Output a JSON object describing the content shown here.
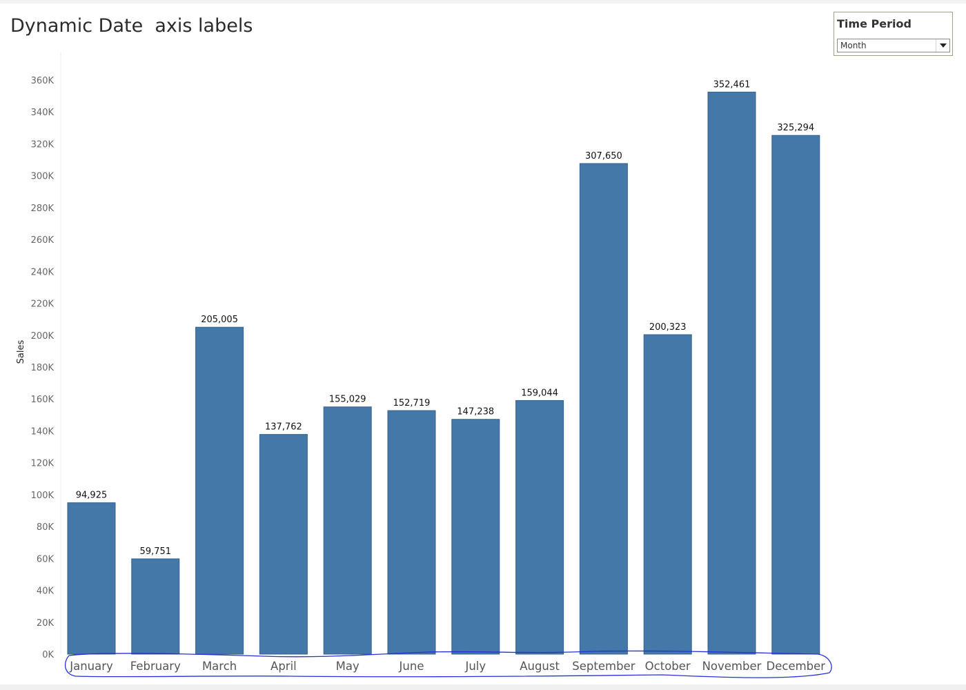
{
  "page": {
    "title": "Dynamic Date  axis labels"
  },
  "filter": {
    "title": "Time Period",
    "value": "Month",
    "arrow_icon": "dropdown-arrow-icon"
  },
  "colors": {
    "bar": "#4378a8",
    "annotation": "#2431d9"
  },
  "chart_data": {
    "type": "bar",
    "ylabel": "Sales",
    "xlabel": "",
    "ylim": [
      0,
      360000
    ],
    "yticks": [
      0,
      20000,
      40000,
      60000,
      80000,
      100000,
      120000,
      140000,
      160000,
      180000,
      200000,
      220000,
      240000,
      260000,
      280000,
      300000,
      320000,
      340000,
      360000
    ],
    "ytick_labels": [
      "0K",
      "20K",
      "40K",
      "60K",
      "80K",
      "100K",
      "120K",
      "140K",
      "160K",
      "180K",
      "200K",
      "220K",
      "240K",
      "260K",
      "280K",
      "300K",
      "320K",
      "340K",
      "360K"
    ],
    "categories": [
      "January",
      "February",
      "March",
      "April",
      "May",
      "June",
      "July",
      "August",
      "September",
      "October",
      "November",
      "December"
    ],
    "values": [
      94925,
      59751,
      205005,
      137762,
      155029,
      152719,
      147238,
      159044,
      307650,
      200323,
      352461,
      325294
    ],
    "value_labels": [
      "94,925",
      "59,751",
      "205,005",
      "137,762",
      "155,029",
      "152,719",
      "147,238",
      "159,044",
      "307,650",
      "200,323",
      "352,461",
      "325,294"
    ],
    "grid": false,
    "legend": "none"
  }
}
